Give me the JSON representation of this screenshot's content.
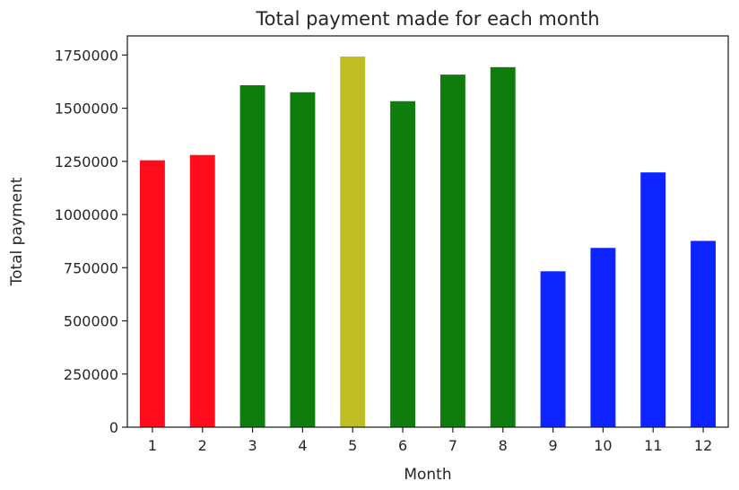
{
  "chart_data": {
    "type": "bar",
    "title": "Total payment made for each month",
    "xlabel": "Month",
    "ylabel": "Total payment",
    "categories": [
      "1",
      "2",
      "3",
      "4",
      "5",
      "6",
      "7",
      "8",
      "9",
      "10",
      "11",
      "12"
    ],
    "values": [
      1255000,
      1280000,
      1608000,
      1575000,
      1743000,
      1533000,
      1658000,
      1693000,
      733000,
      843000,
      1198000,
      876000
    ],
    "bar_colors": [
      "#ff0d1d",
      "#ff0d1d",
      "#0e7d0e",
      "#0e7d0e",
      "#bfbf25",
      "#0e7d0e",
      "#0e7d0e",
      "#0e7d0e",
      "#0d23ff",
      "#0d23ff",
      "#0d23ff",
      "#0d23ff"
    ],
    "yticks": [
      0,
      250000,
      500000,
      750000,
      1000000,
      1250000,
      1500000,
      1750000
    ],
    "ytick_labels": [
      "0",
      "250000",
      "500000",
      "750000",
      "1000000",
      "1250000",
      "1500000",
      "1750000"
    ],
    "ylim": [
      0,
      1840000
    ],
    "grid": false,
    "legend": "none"
  }
}
